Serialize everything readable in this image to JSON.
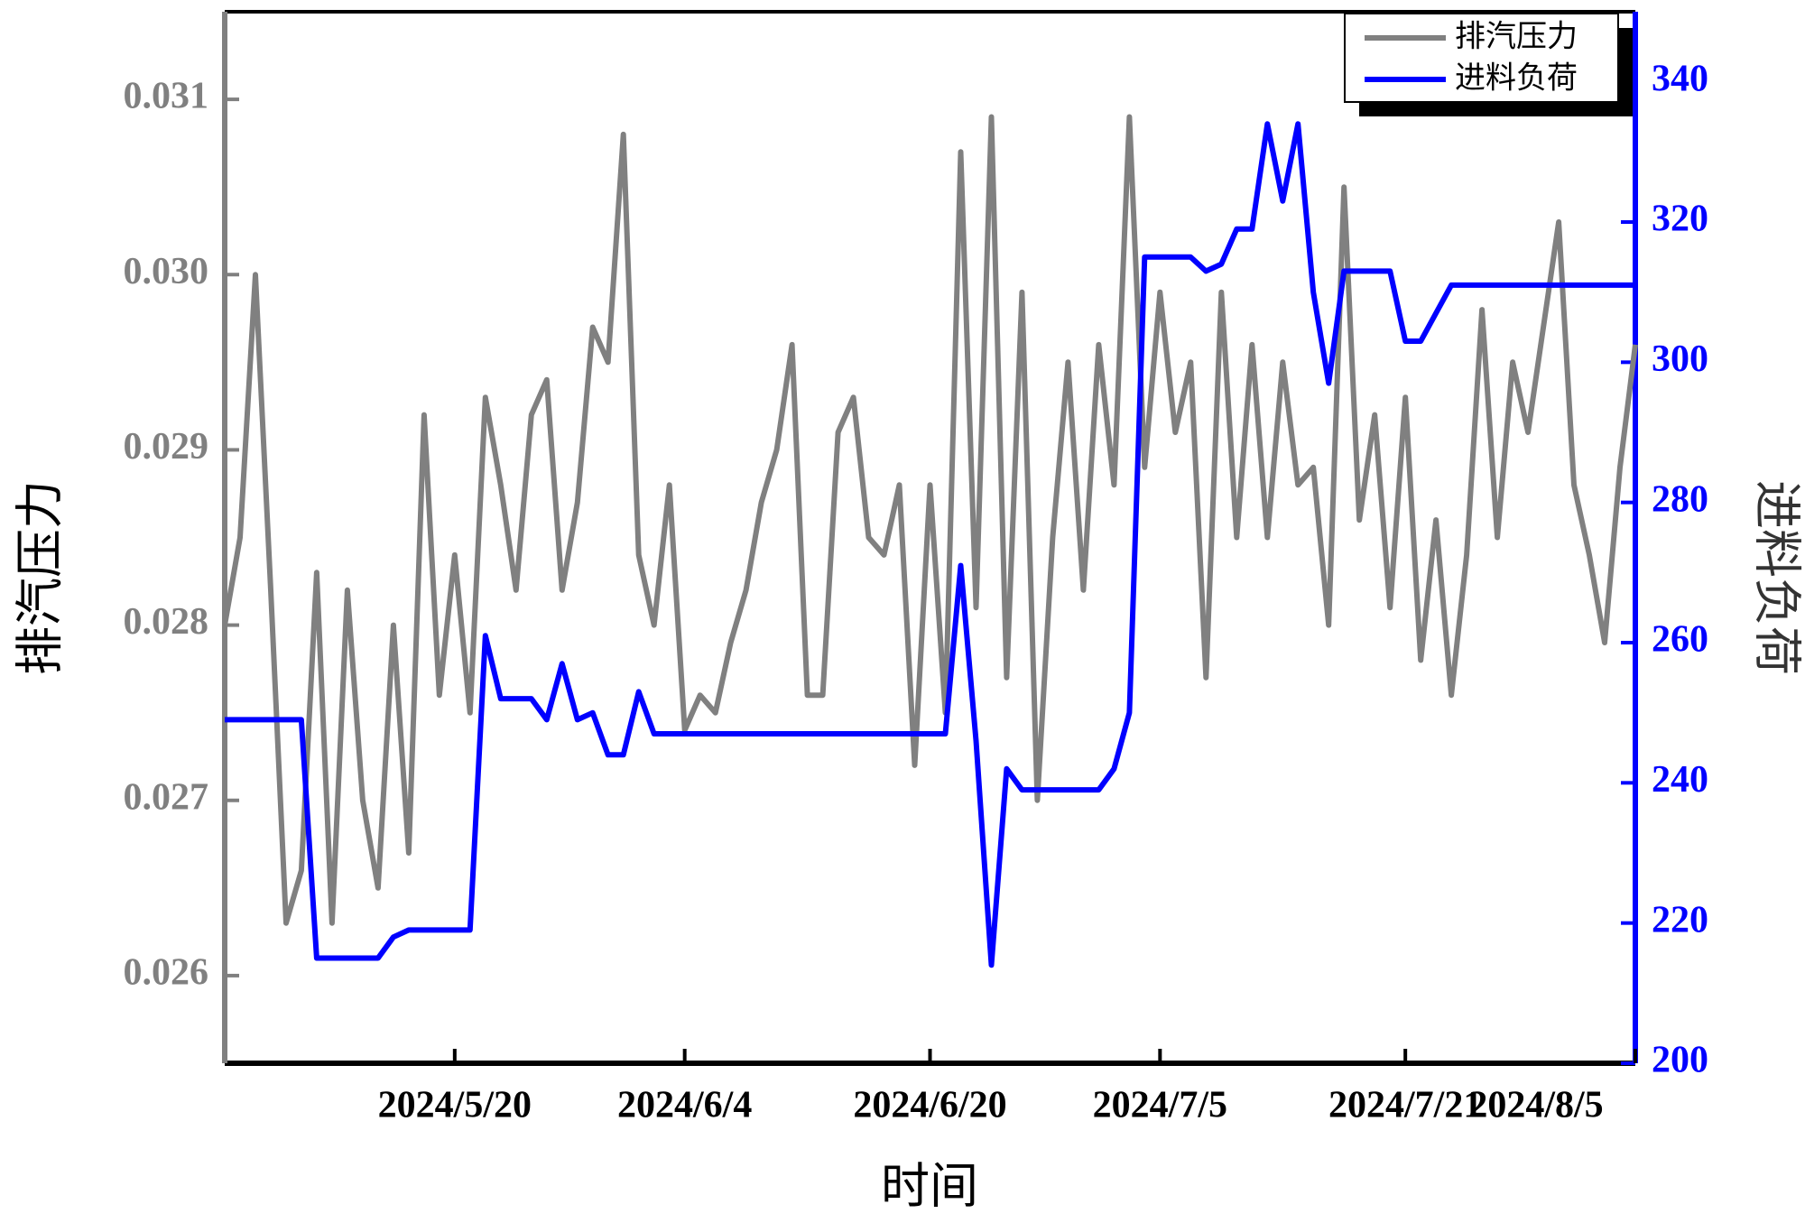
{
  "chart_data": {
    "type": "line",
    "x_label": "时间",
    "y_label": "排汽压力",
    "y2_label": "进料负荷",
    "x": [
      "2024/5/5",
      "2024/5/6",
      "2024/5/7",
      "2024/5/8",
      "2024/5/9",
      "2024/5/10",
      "2024/5/11",
      "2024/5/12",
      "2024/5/13",
      "2024/5/14",
      "2024/5/15",
      "2024/5/16",
      "2024/5/17",
      "2024/5/18",
      "2024/5/19",
      "2024/5/20",
      "2024/5/21",
      "2024/5/22",
      "2024/5/23",
      "2024/5/24",
      "2024/5/25",
      "2024/5/26",
      "2024/5/27",
      "2024/5/28",
      "2024/5/29",
      "2024/5/30",
      "2024/5/31",
      "2024/6/1",
      "2024/6/2",
      "2024/6/3",
      "2024/6/4",
      "2024/6/5",
      "2024/6/6",
      "2024/6/7",
      "2024/6/8",
      "2024/6/9",
      "2024/6/10",
      "2024/6/11",
      "2024/6/12",
      "2024/6/13",
      "2024/6/14",
      "2024/6/15",
      "2024/6/16",
      "2024/6/17",
      "2024/6/18",
      "2024/6/19",
      "2024/6/20",
      "2024/6/21",
      "2024/6/22",
      "2024/6/23",
      "2024/6/24",
      "2024/6/25",
      "2024/6/26",
      "2024/6/27",
      "2024/6/28",
      "2024/6/29",
      "2024/6/30",
      "2024/7/1",
      "2024/7/2",
      "2024/7/3",
      "2024/7/4",
      "2024/7/5",
      "2024/7/6",
      "2024/7/7",
      "2024/7/8",
      "2024/7/9",
      "2024/7/10",
      "2024/7/11",
      "2024/7/12",
      "2024/7/13",
      "2024/7/14",
      "2024/7/15",
      "2024/7/16",
      "2024/7/17",
      "2024/7/18",
      "2024/7/19",
      "2024/7/20",
      "2024/7/21",
      "2024/7/22",
      "2024/7/23",
      "2024/7/24",
      "2024/7/25",
      "2024/7/26",
      "2024/7/27",
      "2024/7/28",
      "2024/7/29",
      "2024/7/30",
      "2024/7/31",
      "2024/8/1",
      "2024/8/2",
      "2024/8/3",
      "2024/8/4",
      "2024/8/5"
    ],
    "series": [
      {
        "name": "排汽压力",
        "color": "#808080",
        "axis": "y",
        "values": [
          0.028,
          0.0285,
          0.03,
          0.0282,
          0.0263,
          0.0266,
          0.0283,
          0.0263,
          0.0282,
          0.027,
          0.0265,
          0.028,
          0.0267,
          0.0292,
          0.0276,
          0.0284,
          0.0275,
          0.0293,
          0.0288,
          0.0282,
          0.0292,
          0.0294,
          0.0282,
          0.0287,
          0.0297,
          0.0295,
          0.0308,
          0.0284,
          0.028,
          0.0288,
          0.0274,
          0.0276,
          0.0275,
          0.0279,
          0.0282,
          0.0287,
          0.029,
          0.0296,
          0.0276,
          0.0276,
          0.0291,
          0.0293,
          0.0285,
          0.0284,
          0.0288,
          0.0272,
          0.0288,
          0.0275,
          0.0307,
          0.0281,
          0.0309,
          0.0277,
          0.0299,
          0.027,
          0.0285,
          0.0295,
          0.0282,
          0.0296,
          0.0288,
          0.0309,
          0.0289,
          0.0299,
          0.0291,
          0.0295,
          0.0277,
          0.0299,
          0.0285,
          0.0296,
          0.0285,
          0.0295,
          0.0288,
          0.0289,
          0.028,
          0.0305,
          0.0286,
          0.0292,
          0.0281,
          0.0293,
          0.0278,
          0.0286,
          0.0276,
          0.0284,
          0.0298,
          0.0285,
          0.0295,
          0.0291,
          0.0297,
          0.0303,
          0.0288,
          0.0284,
          0.0279,
          0.0289,
          0.0296
        ]
      },
      {
        "name": "进料负荷",
        "color": "#0000ff",
        "axis": "y2",
        "values": [
          249,
          249,
          249,
          249,
          249,
          249,
          215,
          215,
          215,
          215,
          215,
          218,
          219,
          219,
          219,
          219,
          219,
          261,
          252,
          252,
          252,
          249,
          257,
          249,
          250,
          244,
          244,
          253,
          247,
          247,
          247,
          247,
          247,
          247,
          247,
          247,
          247,
          247,
          247,
          247,
          247,
          247,
          247,
          247,
          247,
          247,
          247,
          247,
          271,
          246,
          214,
          242,
          239,
          239,
          239,
          239,
          239,
          239,
          242,
          250,
          315,
          315,
          315,
          315,
          313,
          314,
          319,
          319,
          334,
          323,
          334,
          310,
          297,
          313,
          313,
          313,
          313,
          303,
          303,
          307,
          311,
          311,
          311,
          311,
          311,
          311,
          311,
          311,
          311,
          311,
          311,
          311,
          311
        ]
      }
    ],
    "xlim": [
      "2024/5/5",
      "2024/8/5"
    ],
    "xticks": [
      "2024/5/20",
      "2024/6/4",
      "2024/6/20",
      "2024/7/5",
      "2024/7/21",
      "2024/8/5"
    ],
    "ylim": [
      0.0255,
      0.0315
    ],
    "yticks": [
      0.026,
      0.027,
      0.028,
      0.029,
      {
        "value": 0.03,
        "label": "0.030"
      },
      0.031
    ],
    "y2lim": [
      200,
      350
    ],
    "y2ticks": [
      200,
      220,
      240,
      260,
      280,
      300,
      320,
      340
    ],
    "legend": "upper right",
    "grid": false
  }
}
